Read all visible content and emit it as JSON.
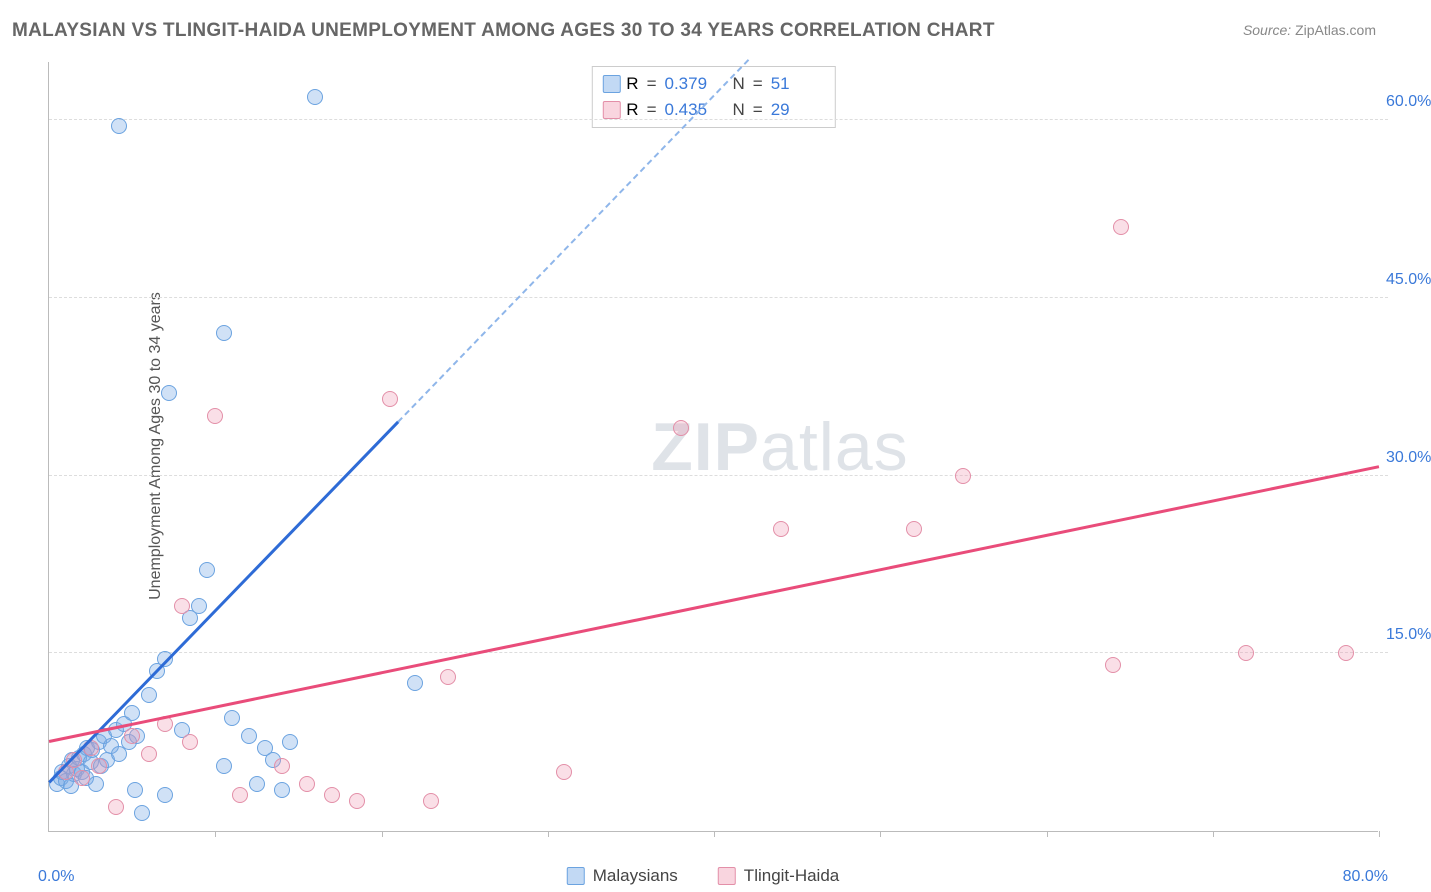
{
  "title": "MALAYSIAN VS TLINGIT-HAIDA UNEMPLOYMENT AMONG AGES 30 TO 34 YEARS CORRELATION CHART",
  "source_label": "Source:",
  "source_value": "ZipAtlas.com",
  "y_axis_label": "Unemployment Among Ages 30 to 34 years",
  "watermark_bold": "ZIP",
  "watermark_rest": "atlas",
  "chart": {
    "type": "scatter",
    "xlim": [
      0,
      80
    ],
    "ylim": [
      0,
      65
    ],
    "y_ticks": [
      15,
      30,
      45,
      60
    ],
    "y_tick_labels": [
      "15.0%",
      "30.0%",
      "45.0%",
      "60.0%"
    ],
    "x_minor_ticks": [
      10,
      20,
      30,
      40,
      50,
      60,
      70,
      80
    ],
    "x_origin_label": "0.0%",
    "x_max_label": "80.0%",
    "axis_value_color": "#3a79d9",
    "grid_color": "#dddddd",
    "background_color": "#ffffff",
    "point_radius": 8,
    "series": [
      {
        "name": "Malaysians",
        "color": "#6ba3e0",
        "fill": "rgba(120,170,230,0.35)",
        "R": "0.379",
        "N": "51",
        "trend": {
          "intercept": 4.0,
          "slope": 1.45,
          "solid_until_x": 21,
          "color": "#2e6bd6"
        },
        "points": [
          [
            0.5,
            4.0
          ],
          [
            0.7,
            4.5
          ],
          [
            0.8,
            5.0
          ],
          [
            1.0,
            4.2
          ],
          [
            1.2,
            5.5
          ],
          [
            1.3,
            3.8
          ],
          [
            1.4,
            6.0
          ],
          [
            1.5,
            4.8
          ],
          [
            1.7,
            5.2
          ],
          [
            1.8,
            6.2
          ],
          [
            2.0,
            5.0
          ],
          [
            2.1,
            6.5
          ],
          [
            2.2,
            4.5
          ],
          [
            2.3,
            7.0
          ],
          [
            2.5,
            5.8
          ],
          [
            2.6,
            6.8
          ],
          [
            2.8,
            4.0
          ],
          [
            3.0,
            7.5
          ],
          [
            3.1,
            5.5
          ],
          [
            3.3,
            8.0
          ],
          [
            3.5,
            6.0
          ],
          [
            3.7,
            7.2
          ],
          [
            4.0,
            8.5
          ],
          [
            4.2,
            6.5
          ],
          [
            4.5,
            9.0
          ],
          [
            4.8,
            7.5
          ],
          [
            5.0,
            10.0
          ],
          [
            5.3,
            8.0
          ],
          [
            5.6,
            1.5
          ],
          [
            6.0,
            11.5
          ],
          [
            6.5,
            13.5
          ],
          [
            7.0,
            14.5
          ],
          [
            8.0,
            8.5
          ],
          [
            8.5,
            18.0
          ],
          [
            9.0,
            19.0
          ],
          [
            9.5,
            22.0
          ],
          [
            10.5,
            42.0
          ],
          [
            11.0,
            9.5
          ],
          [
            12.0,
            8.0
          ],
          [
            12.5,
            4.0
          ],
          [
            13.0,
            7.0
          ],
          [
            13.5,
            6.0
          ],
          [
            14.0,
            3.5
          ],
          [
            14.5,
            7.5
          ],
          [
            22.0,
            12.5
          ],
          [
            4.2,
            59.5
          ],
          [
            7.2,
            37.0
          ],
          [
            16.0,
            62.0
          ],
          [
            7.0,
            3.0
          ],
          [
            10.5,
            5.5
          ],
          [
            5.2,
            3.5
          ]
        ]
      },
      {
        "name": "Tlingit-Haida",
        "color": "#e38fa8",
        "fill": "rgba(240,150,175,0.30)",
        "R": "0.435",
        "N": "29",
        "trend": {
          "intercept": 7.5,
          "slope": 0.29,
          "color": "#e94c7a"
        },
        "points": [
          [
            1.0,
            5.0
          ],
          [
            1.5,
            6.0
          ],
          [
            2.0,
            4.5
          ],
          [
            2.5,
            7.0
          ],
          [
            3.0,
            5.5
          ],
          [
            4.0,
            2.0
          ],
          [
            5.0,
            8.0
          ],
          [
            6.0,
            6.5
          ],
          [
            7.0,
            9.0
          ],
          [
            8.0,
            19.0
          ],
          [
            8.5,
            7.5
          ],
          [
            10.0,
            35.0
          ],
          [
            11.5,
            3.0
          ],
          [
            14.0,
            5.5
          ],
          [
            15.5,
            4.0
          ],
          [
            17.0,
            3.0
          ],
          [
            18.5,
            2.5
          ],
          [
            20.5,
            36.5
          ],
          [
            23.0,
            2.5
          ],
          [
            24.0,
            13.0
          ],
          [
            31.0,
            5.0
          ],
          [
            38.0,
            34.0
          ],
          [
            44.0,
            25.5
          ],
          [
            52.0,
            25.5
          ],
          [
            55.0,
            30.0
          ],
          [
            64.5,
            51.0
          ],
          [
            64.0,
            14.0
          ],
          [
            72.0,
            15.0
          ],
          [
            78.0,
            15.0
          ]
        ]
      }
    ]
  },
  "stats_box": {
    "r_label": "R",
    "n_label": "N",
    "eq": "="
  },
  "legend": {
    "items": [
      "Malaysians",
      "Tlingit-Haida"
    ]
  }
}
